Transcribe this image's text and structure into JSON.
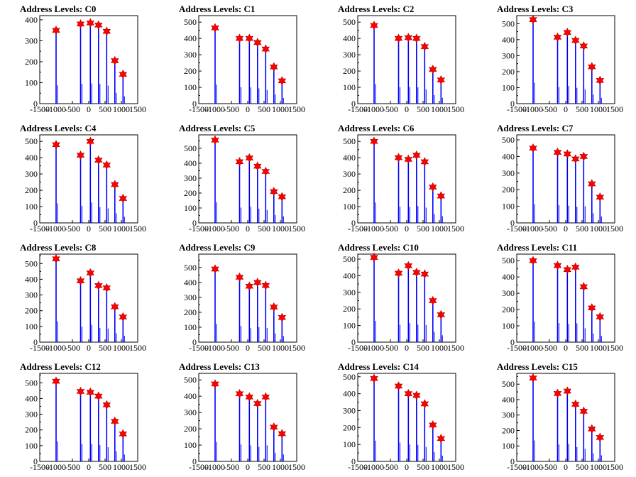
{
  "colors": {
    "histogram": "#0000ff",
    "marker": "#ff0000",
    "frame": "#000000"
  },
  "chart_data": [
    {
      "type": "bar",
      "title": "Address Levels: C0",
      "xlim": [
        -1500,
        1500
      ],
      "ylim": [
        0,
        420
      ],
      "xticks": [
        "-1500",
        "-1000",
        "-500",
        "0",
        "500",
        "1000",
        "1500"
      ],
      "yticks": [
        "0",
        "100",
        "200",
        "300",
        "400"
      ],
      "peaks": [
        {
          "x": -1000,
          "y": 350
        },
        {
          "x": -250,
          "y": 380
        },
        {
          "x": 50,
          "y": 385
        },
        {
          "x": 300,
          "y": 375
        },
        {
          "x": 550,
          "y": 345
        },
        {
          "x": 800,
          "y": 205
        },
        {
          "x": 1050,
          "y": 140
        }
      ]
    },
    {
      "type": "bar",
      "title": "Address Levels: C1",
      "xlim": [
        -1500,
        1500
      ],
      "ylim": [
        0,
        540
      ],
      "xticks": [
        "-1500",
        "-1000",
        "-500",
        "0",
        "500",
        "1000",
        "1500"
      ],
      "yticks": [
        "0",
        "100",
        "200",
        "300",
        "400",
        "500"
      ],
      "peaks": [
        {
          "x": -1000,
          "y": 465
        },
        {
          "x": -250,
          "y": 400
        },
        {
          "x": 50,
          "y": 400
        },
        {
          "x": 300,
          "y": 375
        },
        {
          "x": 550,
          "y": 335
        },
        {
          "x": 800,
          "y": 225
        },
        {
          "x": 1050,
          "y": 140
        }
      ]
    },
    {
      "type": "bar",
      "title": "Address Levels: C2",
      "xlim": [
        -1500,
        1500
      ],
      "ylim": [
        0,
        540
      ],
      "xticks": [
        "-1500",
        "-1000",
        "-500",
        "0",
        "500",
        "1000",
        "1500"
      ],
      "yticks": [
        "0",
        "100",
        "200",
        "300",
        "400",
        "500"
      ],
      "peaks": [
        {
          "x": -1000,
          "y": 480
        },
        {
          "x": -250,
          "y": 400
        },
        {
          "x": 50,
          "y": 405
        },
        {
          "x": 300,
          "y": 400
        },
        {
          "x": 550,
          "y": 350
        },
        {
          "x": 800,
          "y": 210
        },
        {
          "x": 1050,
          "y": 145
        }
      ]
    },
    {
      "type": "bar",
      "title": "Address Levels: C3",
      "xlim": [
        -1500,
        1500
      ],
      "ylim": [
        0,
        550
      ],
      "xticks": [
        "-1500",
        "-1000",
        "-500",
        "0",
        "500",
        "1000",
        "1500"
      ],
      "yticks": [
        "0",
        "100",
        "200",
        "300",
        "400",
        "500"
      ],
      "peaks": [
        {
          "x": -1000,
          "y": 525
        },
        {
          "x": -250,
          "y": 415
        },
        {
          "x": 50,
          "y": 445
        },
        {
          "x": 300,
          "y": 395
        },
        {
          "x": 550,
          "y": 360
        },
        {
          "x": 800,
          "y": 230
        },
        {
          "x": 1050,
          "y": 145
        }
      ]
    },
    {
      "type": "bar",
      "title": "Address Levels: C4",
      "xlim": [
        -1500,
        1500
      ],
      "ylim": [
        0,
        540
      ],
      "xticks": [
        "-1500",
        "-1000",
        "-500",
        "0",
        "500",
        "1000",
        "1500"
      ],
      "yticks": [
        "0",
        "100",
        "200",
        "300",
        "400",
        "500"
      ],
      "peaks": [
        {
          "x": -1000,
          "y": 480
        },
        {
          "x": -250,
          "y": 415
        },
        {
          "x": 50,
          "y": 500
        },
        {
          "x": 300,
          "y": 385
        },
        {
          "x": 550,
          "y": 355
        },
        {
          "x": 800,
          "y": 235
        },
        {
          "x": 1050,
          "y": 150
        }
      ]
    },
    {
      "type": "bar",
      "title": "Address Levels: C5",
      "xlim": [
        -1500,
        1500
      ],
      "ylim": [
        0,
        590
      ],
      "xticks": [
        "-1500",
        "-1000",
        "-500",
        "0",
        "500",
        "1000",
        "1500"
      ],
      "yticks": [
        "0",
        "100",
        "200",
        "300",
        "400",
        "500"
      ],
      "peaks": [
        {
          "x": -1000,
          "y": 555
        },
        {
          "x": -250,
          "y": 410
        },
        {
          "x": 50,
          "y": 435
        },
        {
          "x": 300,
          "y": 380
        },
        {
          "x": 550,
          "y": 345
        },
        {
          "x": 800,
          "y": 210
        },
        {
          "x": 1050,
          "y": 175
        }
      ]
    },
    {
      "type": "bar",
      "title": "Address Levels: C6",
      "xlim": [
        -1500,
        1500
      ],
      "ylim": [
        0,
        540
      ],
      "xticks": [
        "-1500",
        "-1000",
        "-500",
        "0",
        "500",
        "1000",
        "1500"
      ],
      "yticks": [
        "0",
        "100",
        "200",
        "300",
        "400",
        "500"
      ],
      "peaks": [
        {
          "x": -1000,
          "y": 500
        },
        {
          "x": -250,
          "y": 400
        },
        {
          "x": 50,
          "y": 390
        },
        {
          "x": 300,
          "y": 415
        },
        {
          "x": 550,
          "y": 375
        },
        {
          "x": 800,
          "y": 220
        },
        {
          "x": 1050,
          "y": 165
        }
      ]
    },
    {
      "type": "bar",
      "title": "Address Levels: C7",
      "xlim": [
        -1500,
        1500
      ],
      "ylim": [
        0,
        530
      ],
      "xticks": [
        "-1500",
        "-1000",
        "-500",
        "0",
        "500",
        "1000",
        "1500"
      ],
      "yticks": [
        "0",
        "100",
        "200",
        "300",
        "400",
        "500"
      ],
      "peaks": [
        {
          "x": -1000,
          "y": 450
        },
        {
          "x": -250,
          "y": 425
        },
        {
          "x": 50,
          "y": 415
        },
        {
          "x": 300,
          "y": 385
        },
        {
          "x": 550,
          "y": 400
        },
        {
          "x": 800,
          "y": 235
        },
        {
          "x": 1050,
          "y": 155
        }
      ]
    },
    {
      "type": "bar",
      "title": "Address Levels: C8",
      "xlim": [
        -1500,
        1500
      ],
      "ylim": [
        0,
        560
      ],
      "xticks": [
        "-1500",
        "-1000",
        "-500",
        "0",
        "500",
        "1000",
        "1500"
      ],
      "yticks": [
        "0",
        "100",
        "200",
        "300",
        "400",
        "500"
      ],
      "peaks": [
        {
          "x": -1000,
          "y": 530
        },
        {
          "x": -250,
          "y": 390
        },
        {
          "x": 50,
          "y": 440
        },
        {
          "x": 300,
          "y": 360
        },
        {
          "x": 550,
          "y": 345
        },
        {
          "x": 800,
          "y": 225
        },
        {
          "x": 1050,
          "y": 160
        }
      ]
    },
    {
      "type": "bar",
      "title": "Address Levels: C9",
      "xlim": [
        -1500,
        1500
      ],
      "ylim": [
        0,
        590
      ],
      "xticks": [
        "-1500",
        "-1000",
        "-500",
        "0",
        "500",
        "1000",
        "1500"
      ],
      "yticks": [
        "0",
        "100",
        "200",
        "300",
        "400",
        "500"
      ],
      "peaks": [
        {
          "x": -1000,
          "y": 490
        },
        {
          "x": -250,
          "y": 435
        },
        {
          "x": 50,
          "y": 375
        },
        {
          "x": 300,
          "y": 400
        },
        {
          "x": 550,
          "y": 380
        },
        {
          "x": 800,
          "y": 235
        },
        {
          "x": 1050,
          "y": 165
        }
      ]
    },
    {
      "type": "bar",
      "title": "Address Levels: C10",
      "xlim": [
        -1500,
        1500
      ],
      "ylim": [
        0,
        530
      ],
      "xticks": [
        "-1500",
        "-1000",
        "-500",
        "0",
        "500",
        "1000",
        "1500"
      ],
      "yticks": [
        "0",
        "100",
        "200",
        "300",
        "400",
        "500"
      ],
      "peaks": [
        {
          "x": -1000,
          "y": 510
        },
        {
          "x": -250,
          "y": 415
        },
        {
          "x": 50,
          "y": 460
        },
        {
          "x": 300,
          "y": 420
        },
        {
          "x": 550,
          "y": 410
        },
        {
          "x": 800,
          "y": 250
        },
        {
          "x": 1050,
          "y": 165
        }
      ]
    },
    {
      "type": "bar",
      "title": "Address Levels: C11",
      "xlim": [
        -1500,
        1500
      ],
      "ylim": [
        0,
        540
      ],
      "xticks": [
        "-1500",
        "-1000",
        "-500",
        "0",
        "500",
        "1000",
        "1500"
      ],
      "yticks": [
        "0",
        "100",
        "200",
        "300",
        "400",
        "500"
      ],
      "peaks": [
        {
          "x": -1000,
          "y": 500
        },
        {
          "x": -250,
          "y": 470
        },
        {
          "x": 50,
          "y": 445
        },
        {
          "x": 300,
          "y": 460
        },
        {
          "x": 550,
          "y": 340
        },
        {
          "x": 800,
          "y": 210
        },
        {
          "x": 1050,
          "y": 155
        }
      ]
    },
    {
      "type": "bar",
      "title": "Address Levels: C12",
      "xlim": [
        -1500,
        1500
      ],
      "ylim": [
        0,
        560
      ],
      "xticks": [
        "-1500",
        "-1000",
        "-500",
        "0",
        "500",
        "1000",
        "1500"
      ],
      "yticks": [
        "0",
        "100",
        "200",
        "300",
        "400",
        "500"
      ],
      "peaks": [
        {
          "x": -1000,
          "y": 510
        },
        {
          "x": -250,
          "y": 445
        },
        {
          "x": 50,
          "y": 440
        },
        {
          "x": 300,
          "y": 415
        },
        {
          "x": 550,
          "y": 360
        },
        {
          "x": 800,
          "y": 255
        },
        {
          "x": 1050,
          "y": 175
        }
      ]
    },
    {
      "type": "bar",
      "title": "Address Levels: C13",
      "xlim": [
        -1500,
        1500
      ],
      "ylim": [
        0,
        540
      ],
      "xticks": [
        "-1500",
        "-1000",
        "-500",
        "0",
        "500",
        "1000",
        "1500"
      ],
      "yticks": [
        "0",
        "100",
        "200",
        "300",
        "400",
        "500"
      ],
      "peaks": [
        {
          "x": -1000,
          "y": 475
        },
        {
          "x": -250,
          "y": 415
        },
        {
          "x": 50,
          "y": 395
        },
        {
          "x": 300,
          "y": 355
        },
        {
          "x": 550,
          "y": 395
        },
        {
          "x": 800,
          "y": 210
        },
        {
          "x": 1050,
          "y": 170
        }
      ]
    },
    {
      "type": "bar",
      "title": "Address Levels: C14",
      "xlim": [
        -1500,
        1500
      ],
      "ylim": [
        0,
        520
      ],
      "xticks": [
        "-1500",
        "-1000",
        "-500",
        "0",
        "500",
        "1000",
        "1500"
      ],
      "yticks": [
        "0",
        "100",
        "200",
        "300",
        "400",
        "500"
      ],
      "peaks": [
        {
          "x": -1000,
          "y": 490
        },
        {
          "x": -250,
          "y": 445
        },
        {
          "x": 50,
          "y": 400
        },
        {
          "x": 300,
          "y": 390
        },
        {
          "x": 550,
          "y": 340
        },
        {
          "x": 800,
          "y": 215
        },
        {
          "x": 1050,
          "y": 135
        }
      ]
    },
    {
      "type": "bar",
      "title": "Address Levels: C15",
      "xlim": [
        -1500,
        1500
      ],
      "ylim": [
        0,
        570
      ],
      "xticks": [
        "-1500",
        "-1000",
        "-500",
        "0",
        "500",
        "1000",
        "1500"
      ],
      "yticks": [
        "0",
        "100",
        "200",
        "300",
        "400",
        "500"
      ],
      "peaks": [
        {
          "x": -1000,
          "y": 540
        },
        {
          "x": -250,
          "y": 440
        },
        {
          "x": 50,
          "y": 455
        },
        {
          "x": 300,
          "y": 370
        },
        {
          "x": 550,
          "y": 325
        },
        {
          "x": 800,
          "y": 210
        },
        {
          "x": 1050,
          "y": 155
        }
      ]
    }
  ]
}
